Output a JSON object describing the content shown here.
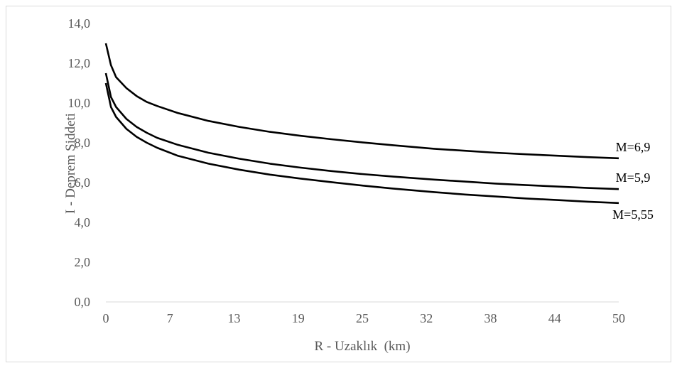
{
  "chart_data": {
    "type": "line",
    "xlabel": "R - Uzaklık  (km)",
    "ylabel": "I - Deprem Şiddeti",
    "x_tick_labels": [
      "0",
      "7",
      "13",
      "19",
      "25",
      "32",
      "38",
      "44",
      "50"
    ],
    "y_tick_labels": [
      "0,0",
      "2,0",
      "4,0",
      "6,0",
      "8,0",
      "10,0",
      "12,0",
      "14,0"
    ],
    "xlim": [
      0,
      50
    ],
    "ylim": [
      0,
      14
    ],
    "grid": false,
    "legend": "none",
    "series_color": "#000000",
    "x": [
      0,
      0.5,
      1,
      2,
      3,
      4,
      5,
      7,
      10,
      13,
      16,
      19,
      22,
      25,
      28,
      32,
      35,
      38,
      41,
      44,
      47,
      50
    ],
    "series": [
      {
        "name": "M=6,9",
        "values": [
          13.0,
          11.9,
          11.3,
          10.75,
          10.35,
          10.05,
          9.85,
          9.5,
          9.1,
          8.8,
          8.55,
          8.35,
          8.18,
          8.02,
          7.88,
          7.7,
          7.6,
          7.5,
          7.42,
          7.35,
          7.28,
          7.22
        ]
      },
      {
        "name": "M=5,9",
        "values": [
          11.5,
          10.3,
          9.8,
          9.2,
          8.8,
          8.5,
          8.25,
          7.9,
          7.5,
          7.2,
          6.95,
          6.75,
          6.58,
          6.43,
          6.3,
          6.15,
          6.05,
          5.95,
          5.87,
          5.8,
          5.73,
          5.67
        ]
      },
      {
        "name": "M=5,55",
        "values": [
          11.0,
          9.8,
          9.3,
          8.7,
          8.3,
          8.0,
          7.75,
          7.35,
          6.95,
          6.65,
          6.4,
          6.2,
          6.02,
          5.85,
          5.7,
          5.52,
          5.4,
          5.3,
          5.2,
          5.12,
          5.04,
          4.97
        ]
      }
    ]
  }
}
